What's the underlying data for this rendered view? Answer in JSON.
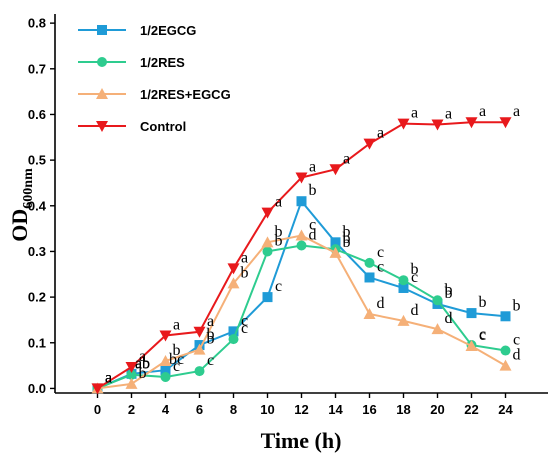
{
  "chart_data": {
    "type": "line",
    "xlabel": "Time (h)",
    "ylabel_main": "OD",
    "ylabel_sub": "600nm",
    "x": [
      0,
      2,
      4,
      6,
      8,
      10,
      12,
      14,
      16,
      18,
      20,
      22,
      24
    ],
    "xlim": [
      -2.5,
      26.5
    ],
    "ylim": [
      -0.01,
      0.82
    ],
    "xticks": [
      "0",
      "2",
      "4",
      "6",
      "8",
      "10",
      "12",
      "14",
      "16",
      "18",
      "20",
      "22",
      "24"
    ],
    "yticks": [
      "0.0",
      "0.1",
      "0.2",
      "0.3",
      "0.4",
      "0.5",
      "0.6",
      "0.7",
      "0.8"
    ],
    "legend_position": "top-left",
    "series": [
      {
        "name": "1/2EGCG",
        "color": "#1f9bd7",
        "marker": "square",
        "values": [
          0.0,
          0.032,
          0.04,
          0.095,
          0.125,
          0.2,
          0.41,
          0.32,
          0.243,
          0.22,
          0.185,
          0.165,
          0.158
        ],
        "labels": [
          "a",
          "ab",
          "bc",
          "b",
          "c",
          "c",
          "b",
          "b",
          "c",
          "c",
          "b",
          "b",
          "b"
        ]
      },
      {
        "name": "1/2RES",
        "color": "#2ecc8f",
        "marker": "circle",
        "values": [
          0.0,
          0.03,
          0.025,
          0.038,
          0.108,
          0.3,
          0.313,
          0.305,
          0.275,
          0.237,
          0.193,
          0.095,
          0.083
        ],
        "labels": [
          "a",
          "ab",
          "c",
          "c",
          "c",
          "b",
          "d",
          "b",
          "c",
          "b",
          "b",
          "c",
          "c"
        ]
      },
      {
        "name": "1/2RES+EGCG",
        "color": "#f5b078",
        "marker": "triangle-up",
        "values": [
          0.0,
          0.01,
          0.06,
          0.085,
          0.23,
          0.32,
          0.335,
          0.297,
          0.163,
          0.148,
          0.13,
          0.093,
          0.05
        ],
        "labels": [
          "a",
          "b",
          "b",
          "b",
          "b",
          "b",
          "c",
          "b",
          "d",
          "d",
          "d",
          "c",
          "d"
        ]
      },
      {
        "name": "Control",
        "color": "#e8191c",
        "marker": "triangle-down",
        "values": [
          0.0,
          0.047,
          0.116,
          0.124,
          0.263,
          0.385,
          0.462,
          0.48,
          0.536,
          0.58,
          0.578,
          0.583,
          0.583
        ],
        "labels": [
          "a",
          "a",
          "a",
          "a",
          "a",
          "a",
          "a",
          "a",
          "a",
          "a",
          "a",
          "a",
          "a"
        ]
      }
    ]
  }
}
